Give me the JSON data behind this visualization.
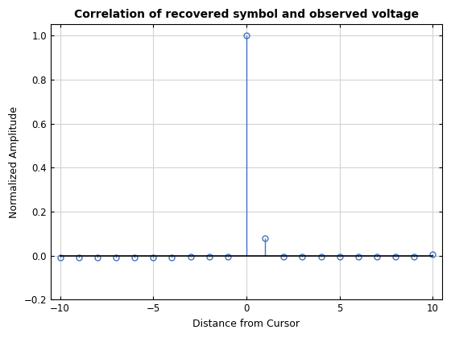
{
  "title": "Correlation of recovered symbol and observed voltage",
  "xlabel": "Distance from Cursor",
  "ylabel": "Normalized Amplitude",
  "xlim": [
    -10.5,
    10.5
  ],
  "ylim": [
    -0.2,
    1.05
  ],
  "x_ticks": [
    -10,
    -5,
    0,
    5,
    10
  ],
  "y_ticks": [
    -0.2,
    0,
    0.2,
    0.4,
    0.6,
    0.8,
    1.0
  ],
  "stem_color": "#4472c4",
  "baseline_color": "#000000",
  "background_color": "#ffffff",
  "grid_color": "#d3d3d3",
  "x_values": [
    -10,
    -9,
    -8,
    -7,
    -6,
    -5,
    -4,
    -3,
    -2,
    -1,
    0,
    1,
    2,
    3,
    4,
    5,
    6,
    7,
    8,
    9,
    10
  ],
  "y_values": [
    -0.01,
    -0.01,
    -0.01,
    -0.01,
    -0.01,
    -0.01,
    -0.01,
    -0.005,
    -0.005,
    -0.005,
    1.0,
    0.08,
    -0.005,
    -0.005,
    -0.005,
    -0.005,
    -0.005,
    -0.005,
    -0.005,
    -0.005,
    0.005
  ],
  "title_fontsize": 10,
  "label_fontsize": 9,
  "tick_fontsize": 8.5,
  "marker_size": 5,
  "linewidth": 1.0
}
